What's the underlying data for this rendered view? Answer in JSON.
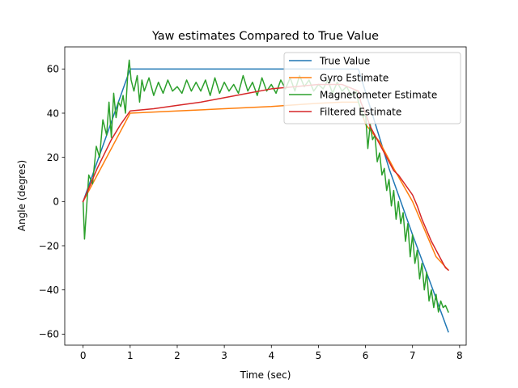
{
  "chart_data": {
    "type": "line",
    "title": "Yaw estimates Compared to True Value",
    "xlabel": "Time (sec)",
    "ylabel": "Angle (degres)",
    "xlim": [
      -0.39,
      8.14
    ],
    "ylim": [
      -65,
      70
    ],
    "xticks": [
      0,
      1,
      2,
      3,
      4,
      5,
      6,
      7,
      8
    ],
    "yticks": [
      -60,
      -40,
      -20,
      0,
      20,
      40,
      60
    ],
    "grid": false,
    "legend_position": "top-right",
    "series": [
      {
        "name": "True Value",
        "color": "#1f77b4",
        "x": [
          0,
          0.5,
          1.0,
          5.85,
          6.5,
          7.0,
          7.4,
          7.76
        ],
        "y": [
          0,
          30,
          60,
          60,
          15,
          -15,
          -38,
          -59
        ]
      },
      {
        "name": "Gyro Estimate",
        "color": "#ff7f0e",
        "x": [
          0,
          0.5,
          1.0,
          2.0,
          3.0,
          4.0,
          5.0,
          5.5,
          5.85,
          6.0,
          6.3,
          6.6,
          7.0,
          7.3,
          7.5,
          7.76
        ],
        "y": [
          0,
          20,
          40,
          41,
          42,
          43,
          44.5,
          45,
          45,
          35,
          27,
          15,
          0,
          -15,
          -25,
          -31
        ]
      },
      {
        "name": "Magnetometer Estimate",
        "color": "#2ca02c",
        "x": [
          0,
          0.03,
          0.12,
          0.2,
          0.28,
          0.35,
          0.42,
          0.5,
          0.55,
          0.6,
          0.65,
          0.7,
          0.75,
          0.8,
          0.85,
          0.9,
          0.95,
          0.98,
          1.02,
          1.08,
          1.15,
          1.2,
          1.25,
          1.3,
          1.4,
          1.5,
          1.6,
          1.7,
          1.8,
          1.9,
          2.0,
          2.1,
          2.2,
          2.3,
          2.4,
          2.5,
          2.6,
          2.7,
          2.8,
          2.9,
          3.0,
          3.1,
          3.2,
          3.3,
          3.4,
          3.5,
          3.6,
          3.7,
          3.8,
          3.9,
          4.0,
          4.1,
          4.2,
          4.3,
          4.4,
          4.5,
          4.6,
          4.7,
          4.8,
          4.9,
          5.0,
          5.1,
          5.2,
          5.3,
          5.4,
          5.5,
          5.6,
          5.7,
          5.8,
          5.85,
          5.9,
          5.95,
          6.0,
          6.05,
          6.1,
          6.15,
          6.2,
          6.25,
          6.3,
          6.35,
          6.4,
          6.45,
          6.5,
          6.55,
          6.6,
          6.65,
          6.7,
          6.75,
          6.8,
          6.85,
          6.9,
          6.95,
          7.0,
          7.05,
          7.1,
          7.15,
          7.2,
          7.25,
          7.3,
          7.35,
          7.4,
          7.45,
          7.5,
          7.55,
          7.6,
          7.65,
          7.7,
          7.76
        ],
        "y": [
          0,
          -17,
          12,
          8,
          25,
          20,
          37,
          30,
          45,
          29,
          49,
          38,
          45,
          43,
          48,
          40,
          58,
          64,
          55,
          50,
          57,
          45,
          55,
          50,
          56,
          48,
          54,
          49,
          55,
          50,
          52,
          49,
          55,
          50,
          54,
          50,
          55,
          48,
          56,
          49,
          54,
          50,
          53,
          49,
          57,
          50,
          54,
          48,
          56,
          50,
          53,
          49,
          55,
          51,
          56,
          50,
          57,
          52,
          55,
          50,
          53,
          51,
          55,
          49,
          54,
          50,
          52,
          48,
          50,
          45,
          42,
          38,
          40,
          24,
          35,
          28,
          30,
          18,
          22,
          12,
          15,
          5,
          10,
          -2,
          5,
          -8,
          0,
          -10,
          -5,
          -18,
          -10,
          -25,
          -15,
          -28,
          -22,
          -35,
          -28,
          -40,
          -32,
          -45,
          -40,
          -48,
          -42,
          -50,
          -45,
          -48,
          -47,
          -50
        ]
      },
      {
        "name": "Filtered Estimate",
        "color": "#d62728",
        "x": [
          0,
          0.3,
          0.6,
          0.8,
          1.0,
          1.5,
          2.0,
          2.5,
          3.0,
          3.5,
          4.0,
          4.5,
          5.0,
          5.5,
          5.85,
          5.9,
          6.0,
          6.1,
          6.2,
          6.3,
          6.4,
          6.5,
          6.6,
          6.7,
          6.8,
          6.9,
          7.0,
          7.1,
          7.2,
          7.3,
          7.4,
          7.5,
          7.6,
          7.7,
          7.76
        ],
        "y": [
          0,
          15,
          28,
          35,
          41,
          42,
          43.5,
          45,
          47,
          49,
          51,
          52,
          53,
          53,
          50,
          45,
          40,
          34,
          30,
          26,
          22,
          18,
          14,
          12,
          9,
          6,
          3,
          -2,
          -8,
          -13,
          -18,
          -22,
          -26,
          -30,
          -31
        ]
      }
    ]
  }
}
